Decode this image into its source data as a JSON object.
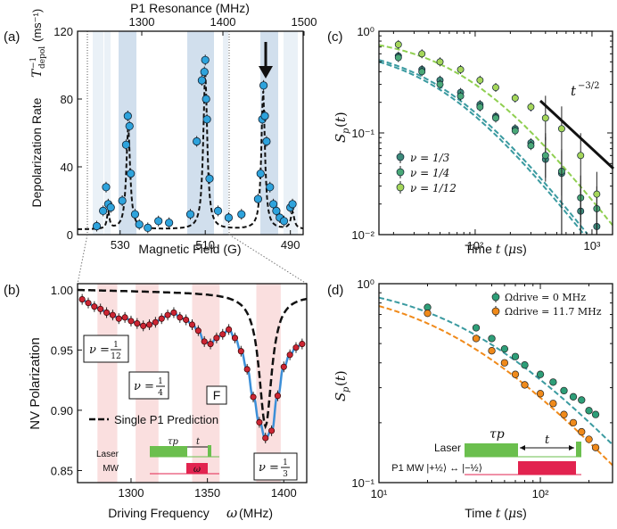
{
  "panels": {
    "a": {
      "letter": "(a)",
      "top_label": "P1 Resonance (MHz)",
      "ylabel": "Depolarization Rate",
      "ylabel_sym": "T",
      "ylabel_unit": "(ms⁻¹)",
      "xlabel": "Magnetic Field (G)",
      "yticks": [
        "0",
        "40",
        "80",
        "120"
      ],
      "xticks": [
        "530",
        "510",
        "490"
      ],
      "top_ticks": [
        "1300",
        "1400",
        "1500"
      ]
    },
    "b": {
      "letter": "(b)",
      "ylabel": "NV Polarization",
      "xlabel": "Driving Frequency",
      "xlabel_sym": "ω",
      "xlabel_unit": "(MHz)",
      "yticks": [
        "1.00",
        "0.95",
        "0.90",
        "0.85"
      ],
      "xticks": [
        "1300",
        "1350",
        "1400"
      ],
      "box_F": "F",
      "legend": "Single P1 Prediction",
      "nu_labels": [
        "ν = 1/12",
        "ν = 1/4",
        "ν = 1/3"
      ],
      "inset": {
        "laser": "Laser",
        "mw": "MW",
        "tau": "τp",
        "t": "t",
        "omega": "ω"
      }
    },
    "c": {
      "letter": "(c)",
      "ylabel": "Sp(t)",
      "xlabel": "Time t (μs)",
      "yticks": [
        "10⁰",
        "10⁻¹",
        "10⁻²"
      ],
      "xticks": [
        "10²",
        "10³"
      ],
      "slope_label": "t^-3/2",
      "legend": [
        "ν = 1/3",
        "ν = 1/4",
        "ν = 1/12"
      ]
    },
    "d": {
      "letter": "(d)",
      "ylabel": "Sp(t)",
      "xlabel": "Time t (μs)",
      "yticks": [
        "10⁰",
        "10⁻¹"
      ],
      "xticks": [
        "10¹",
        "10²"
      ],
      "legend": [
        "Ωdrive = 0 MHz",
        "Ωdrive = 11.7 MHz"
      ],
      "inset": {
        "laser": "Laser",
        "mw": "P1 MW |+½⟩ ↔ |−½⟩",
        "tau": "τp",
        "t": "t"
      }
    }
  },
  "colors": {
    "blue_dot": "#2ea3dc",
    "red_dot": "#cc2533",
    "fit_blue": "#3c8fd8",
    "green1": "#3d8a7a",
    "green2": "#4aa877",
    "green3": "#a5d65a",
    "teal_fit": "#3a9aa0",
    "green_fit": "#8fcf50",
    "orange": "#f08a1a",
    "green_d": "#2e9e78",
    "laser_green": "#6bbf4e",
    "mw_red": "#e2234f",
    "band_blue": "#c5d7e8",
    "band_pink": "#f9d7d7"
  },
  "chart_data": [
    {
      "panel": "a",
      "type": "scatter",
      "xlabel": "Magnetic Field (G)",
      "ylabel": "Depolarization Rate (ms⁻¹)",
      "xlim": [
        540,
        487
      ],
      "ylim": [
        0,
        120
      ],
      "x": [
        535.5,
        534.0,
        533.3,
        532.8,
        532.2,
        529.5,
        528.6,
        528.2,
        527.8,
        527.5,
        526.5,
        525.5,
        523.5,
        521.0,
        518.5,
        513.5,
        512.0,
        510.8,
        510.2,
        510.0,
        509.8,
        509.6,
        509.0,
        507.0,
        504.5,
        501.5,
        497.6,
        497.0,
        496.6,
        496.3,
        496.0,
        495.6,
        494.8,
        494.0,
        493.3,
        492.5,
        491.5,
        490.0,
        489.5
      ],
      "y": [
        5,
        14,
        28,
        18,
        16,
        20,
        53,
        70,
        64,
        36,
        12,
        6,
        4,
        8,
        7,
        12,
        55,
        91,
        96,
        103,
        80,
        68,
        33,
        14,
        10,
        12,
        21,
        36,
        68,
        88,
        70,
        55,
        28,
        18,
        14,
        10,
        8,
        16,
        18
      ]
    },
    {
      "panel": "b",
      "type": "line",
      "xlabel": "Driving Frequency ω (MHz)",
      "ylabel": "NV Polarization",
      "xlim": [
        1265,
        1415
      ],
      "ylim": [
        0.84,
        1.005
      ],
      "x": [
        1268,
        1272,
        1276,
        1280,
        1284,
        1288,
        1292,
        1296,
        1300,
        1304,
        1308,
        1312,
        1316,
        1320,
        1324,
        1328,
        1332,
        1336,
        1340,
        1344,
        1348,
        1352,
        1356,
        1360,
        1364,
        1368,
        1372,
        1376,
        1380,
        1384,
        1388,
        1392,
        1396,
        1400,
        1404,
        1408,
        1412
      ],
      "y": [
        0.992,
        0.989,
        0.986,
        0.984,
        0.981,
        0.979,
        0.976,
        0.977,
        0.974,
        0.972,
        0.97,
        0.971,
        0.973,
        0.976,
        0.979,
        0.981,
        0.977,
        0.975,
        0.971,
        0.966,
        0.957,
        0.955,
        0.96,
        0.963,
        0.967,
        0.96,
        0.949,
        0.934,
        0.911,
        0.89,
        0.877,
        0.883,
        0.912,
        0.936,
        0.946,
        0.952,
        0.955
      ]
    },
    {
      "panel": "c",
      "type": "scatter",
      "xlabel": "Time t (μs)",
      "ylabel": "Sp(t)",
      "xscale": "log",
      "yscale": "log",
      "xlim": [
        15,
        1500
      ],
      "ylim": [
        0.01,
        1
      ],
      "series": [
        {
          "name": "ν = 1/3",
          "x": [
            22,
            35,
            50,
            75,
            110,
            150,
            220,
            300,
            400,
            550,
            800,
            1100
          ],
          "y": [
            0.57,
            0.42,
            0.33,
            0.25,
            0.19,
            0.145,
            0.11,
            0.08,
            0.055,
            0.04,
            0.017,
            0.012
          ]
        },
        {
          "name": "ν = 1/4",
          "x": [
            22,
            35,
            50,
            75,
            110,
            150,
            220,
            300,
            400,
            550,
            800,
            1100
          ],
          "y": [
            0.55,
            0.4,
            0.3,
            0.23,
            0.18,
            0.14,
            0.105,
            0.075,
            0.06,
            0.042,
            0.023,
            0.018
          ]
        },
        {
          "name": "ν = 1/12",
          "x": [
            22,
            35,
            50,
            75,
            110,
            150,
            220,
            300,
            400,
            550,
            800,
            1100
          ],
          "y": [
            0.74,
            0.6,
            0.5,
            0.42,
            0.33,
            0.28,
            0.22,
            0.18,
            0.14,
            0.11,
            0.06,
            0.025
          ]
        }
      ]
    },
    {
      "panel": "d",
      "type": "scatter",
      "xlabel": "Time t (μs)",
      "ylabel": "Sp(t)",
      "xscale": "log",
      "yscale": "log",
      "xlim": [
        10,
        280
      ],
      "ylim": [
        0.1,
        1
      ],
      "series": [
        {
          "name": "Ωdrive = 0 MHz",
          "x": [
            20,
            40,
            50,
            60,
            70,
            80,
            100,
            120,
            140,
            160,
            180,
            200,
            220
          ],
          "y": [
            0.76,
            0.6,
            0.53,
            0.47,
            0.43,
            0.39,
            0.35,
            0.32,
            0.29,
            0.27,
            0.26,
            0.23,
            0.22
          ]
        },
        {
          "name": "Ωdrive = 11.7 MHz",
          "x": [
            20,
            40,
            50,
            60,
            70,
            80,
            100,
            120,
            140,
            160,
            180,
            200,
            220
          ],
          "y": [
            0.71,
            0.53,
            0.46,
            0.4,
            0.35,
            0.31,
            0.28,
            0.25,
            0.22,
            0.2,
            0.18,
            0.165,
            0.15
          ]
        }
      ]
    }
  ]
}
